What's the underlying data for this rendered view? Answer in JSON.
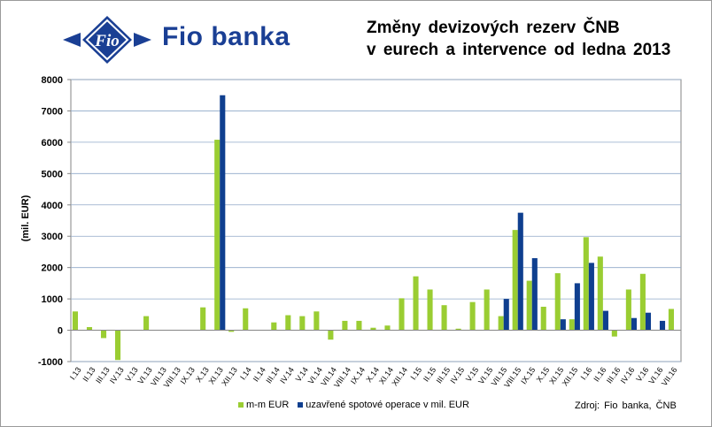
{
  "header": {
    "brand": "Fio banka",
    "logo_text": "Fio",
    "title_line1": "Změny devizových rezerv ČNB",
    "title_line2": "v eurech a intervence od ledna 2013"
  },
  "source": "Zdroj: Fio banka, ČNB",
  "colors": {
    "green": "#9acd32",
    "navy": "#0f3f8f",
    "brand_blue": "#1a3f94"
  },
  "chart_data": {
    "type": "bar",
    "title": "Změny devizových rezerv ČNB v eurech a intervence od ledna 2013",
    "ylabel": "(mil. EUR)",
    "ylim": [
      -1000,
      8000
    ],
    "yticks": [
      -1000,
      0,
      1000,
      2000,
      3000,
      4000,
      5000,
      6000,
      7000,
      8000
    ],
    "grid": true,
    "legend_position": "bottom",
    "categories": [
      "I.13",
      "II.13",
      "III.13",
      "IV.13",
      "V.13",
      "VI.13",
      "VII.13",
      "VIII.13",
      "IX.13",
      "X.13",
      "XI.13",
      "XII.13",
      "I.14",
      "II.14",
      "III.14",
      "IV.14",
      "V.14",
      "VI.14",
      "VII.14",
      "VIII.14",
      "IX.14",
      "X.14",
      "XI.14",
      "XII.14",
      "I.15",
      "II.15",
      "III.15",
      "IV.15",
      "V.15",
      "VI.15",
      "VII.15",
      "VIII.15",
      "IX.15",
      "X.15",
      "XI.15",
      "XII.15",
      "I.16",
      "II.16",
      "III.16",
      "IV.16",
      "V.16",
      "VI.16",
      "VII.16"
    ],
    "series": [
      {
        "name": "m-m EUR",
        "color": "#9acd32",
        "values": [
          600,
          100,
          -250,
          -950,
          0,
          450,
          0,
          0,
          0,
          730,
          6080,
          -50,
          700,
          0,
          250,
          480,
          450,
          600,
          -300,
          300,
          300,
          80,
          150,
          1020,
          1720,
          1300,
          800,
          50,
          900,
          1300,
          450,
          3200,
          1580,
          750,
          1820,
          350,
          2970,
          2350,
          -200,
          1300,
          1800,
          0,
          680
        ]
      },
      {
        "name": "uzavřené spotové operace v mil. EUR",
        "color": "#0f3f8f",
        "values": [
          0,
          0,
          0,
          0,
          0,
          0,
          0,
          0,
          0,
          0,
          7500,
          0,
          0,
          0,
          0,
          0,
          0,
          0,
          0,
          0,
          0,
          0,
          0,
          0,
          0,
          0,
          0,
          0,
          0,
          0,
          1000,
          3750,
          2300,
          0,
          350,
          1500,
          2150,
          620,
          0,
          390,
          560,
          300,
          0
        ]
      }
    ]
  }
}
